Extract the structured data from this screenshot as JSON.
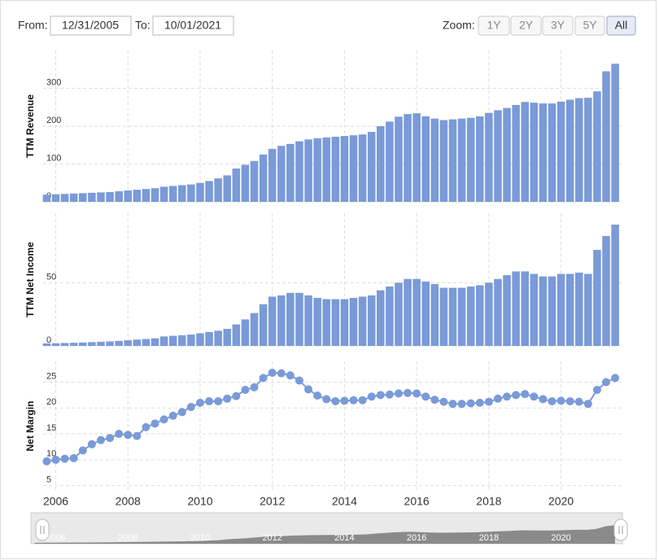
{
  "controls": {
    "from_label": "From:",
    "from_value": "12/31/2005",
    "to_label": "To:",
    "to_value": "10/01/2021",
    "zoom_label": "Zoom:",
    "zoom_buttons": [
      "1Y",
      "2Y",
      "3Y",
      "5Y",
      "All"
    ],
    "active_zoom": 4
  },
  "chart_data": [
    {
      "type": "bar",
      "y_label": "TTM Revenue",
      "color": "#7a9ad8",
      "grid": true,
      "x": [
        2005.75,
        2006,
        2006.25,
        2006.5,
        2006.75,
        2007,
        2007.25,
        2007.5,
        2007.75,
        2008,
        2008.25,
        2008.5,
        2008.75,
        2009,
        2009.25,
        2009.5,
        2009.75,
        2010,
        2010.25,
        2010.5,
        2010.75,
        2011,
        2011.25,
        2011.5,
        2011.75,
        2012,
        2012.25,
        2012.5,
        2012.75,
        2013,
        2013.25,
        2013.5,
        2013.75,
        2014,
        2014.25,
        2014.5,
        2014.75,
        2015,
        2015.25,
        2015.5,
        2015.75,
        2016,
        2016.25,
        2016.5,
        2016.75,
        2017,
        2017.25,
        2017.5,
        2017.75,
        2018,
        2018.25,
        2018.5,
        2018.75,
        2019,
        2019.25,
        2019.5,
        2019.75,
        2020,
        2020.25,
        2020.5,
        2020.75,
        2021,
        2021.25,
        2021.5
      ],
      "values": [
        19,
        20,
        21,
        22,
        23,
        24,
        25,
        26,
        28,
        30,
        32,
        34,
        36,
        40,
        42,
        44,
        46,
        50,
        55,
        62,
        70,
        88,
        98,
        108,
        125,
        140,
        148,
        153,
        160,
        165,
        168,
        170,
        172,
        174,
        176,
        178,
        185,
        200,
        212,
        225,
        232,
        234,
        226,
        220,
        216,
        218,
        220,
        222,
        226,
        235,
        242,
        248,
        256,
        264,
        262,
        260,
        260,
        265,
        270,
        274,
        275,
        292,
        345,
        365
      ],
      "xlim": [
        2005.65,
        2021.7
      ],
      "ylim": [
        0,
        400
      ],
      "yticks": [
        0,
        100,
        200,
        300
      ],
      "xticks": [
        2006,
        2008,
        2010,
        2012,
        2014,
        2016,
        2018,
        2020
      ]
    },
    {
      "type": "bar",
      "y_label": "TTM Net Income",
      "color": "#7a9ad8",
      "grid": true,
      "x": [
        2005.75,
        2006,
        2006.25,
        2006.5,
        2006.75,
        2007,
        2007.25,
        2007.5,
        2007.75,
        2008,
        2008.25,
        2008.5,
        2008.75,
        2009,
        2009.25,
        2009.5,
        2009.75,
        2010,
        2010.25,
        2010.5,
        2010.75,
        2011,
        2011.25,
        2011.5,
        2011.75,
        2012,
        2012.25,
        2012.5,
        2012.75,
        2013,
        2013.25,
        2013.5,
        2013.75,
        2014,
        2014.25,
        2014.5,
        2014.75,
        2015,
        2015.25,
        2015.5,
        2015.75,
        2016,
        2016.25,
        2016.5,
        2016.75,
        2017,
        2017.25,
        2017.5,
        2017.75,
        2018,
        2018.25,
        2018.5,
        2018.75,
        2019,
        2019.25,
        2019.5,
        2019.75,
        2020,
        2020.25,
        2020.5,
        2020.75,
        2021,
        2021.25,
        2021.5
      ],
      "values": [
        2,
        2.1,
        2.3,
        2.5,
        2.7,
        3,
        3.3,
        3.6,
        4,
        4.5,
        5,
        5.5,
        6,
        7.5,
        8,
        8.5,
        9,
        10,
        11,
        12,
        13.5,
        17,
        21,
        26,
        33,
        39,
        40,
        42,
        42,
        40,
        38,
        37,
        37,
        37,
        38,
        39,
        40,
        44,
        47,
        50,
        53,
        53,
        51,
        49,
        46,
        46,
        46,
        47,
        48,
        50,
        53,
        56,
        59,
        59,
        57,
        55,
        55,
        57,
        57,
        58,
        57,
        76,
        87,
        96
      ],
      "xlim": [
        2005.65,
        2021.7
      ],
      "ylim": [
        0,
        105
      ],
      "yticks": [
        0,
        50
      ],
      "xticks": [
        2006,
        2008,
        2010,
        2012,
        2014,
        2016,
        2018,
        2020
      ]
    },
    {
      "type": "line",
      "y_label": "Net Margin",
      "color": "#7a9ad8",
      "grid": true,
      "markers": true,
      "x": [
        2005.75,
        2006,
        2006.25,
        2006.5,
        2006.75,
        2007,
        2007.25,
        2007.5,
        2007.75,
        2008,
        2008.25,
        2008.5,
        2008.75,
        2009,
        2009.25,
        2009.5,
        2009.75,
        2010,
        2010.25,
        2010.5,
        2010.75,
        2011,
        2011.25,
        2011.5,
        2011.75,
        2012,
        2012.25,
        2012.5,
        2012.75,
        2013,
        2013.25,
        2013.5,
        2013.75,
        2014,
        2014.25,
        2014.5,
        2014.75,
        2015,
        2015.25,
        2015.5,
        2015.75,
        2016,
        2016.25,
        2016.5,
        2016.75,
        2017,
        2017.25,
        2017.5,
        2017.75,
        2018,
        2018.25,
        2018.5,
        2018.75,
        2019,
        2019.25,
        2019.5,
        2019.75,
        2020,
        2020.25,
        2020.5,
        2020.75,
        2021,
        2021.25,
        2021.5
      ],
      "values": [
        9.7,
        10,
        10.2,
        10.3,
        11.8,
        13,
        13.8,
        14.2,
        15,
        14.8,
        14.6,
        16.3,
        17,
        17.8,
        18.5,
        19.2,
        20.2,
        21,
        21.3,
        21.3,
        21.8,
        22.3,
        23.5,
        24,
        25.8,
        26.8,
        26.7,
        26.3,
        25.3,
        23.6,
        22.4,
        21.7,
        21.3,
        21.4,
        21.5,
        21.5,
        22.2,
        22.5,
        22.6,
        22.8,
        22.9,
        22.8,
        22.2,
        21.6,
        21.2,
        20.8,
        20.8,
        20.9,
        21,
        21.2,
        21.8,
        22.2,
        22.5,
        22.7,
        22.2,
        21.7,
        21.3,
        21.4,
        21.3,
        21.2,
        20.8,
        23.5,
        25,
        25.8
      ],
      "xlim": [
        2005.65,
        2021.7
      ],
      "ylim": [
        4,
        29
      ],
      "yticks": [
        5,
        10,
        15,
        20,
        25
      ],
      "xticks": [
        2006,
        2008,
        2010,
        2012,
        2014,
        2016,
        2018,
        2020
      ]
    }
  ]
}
